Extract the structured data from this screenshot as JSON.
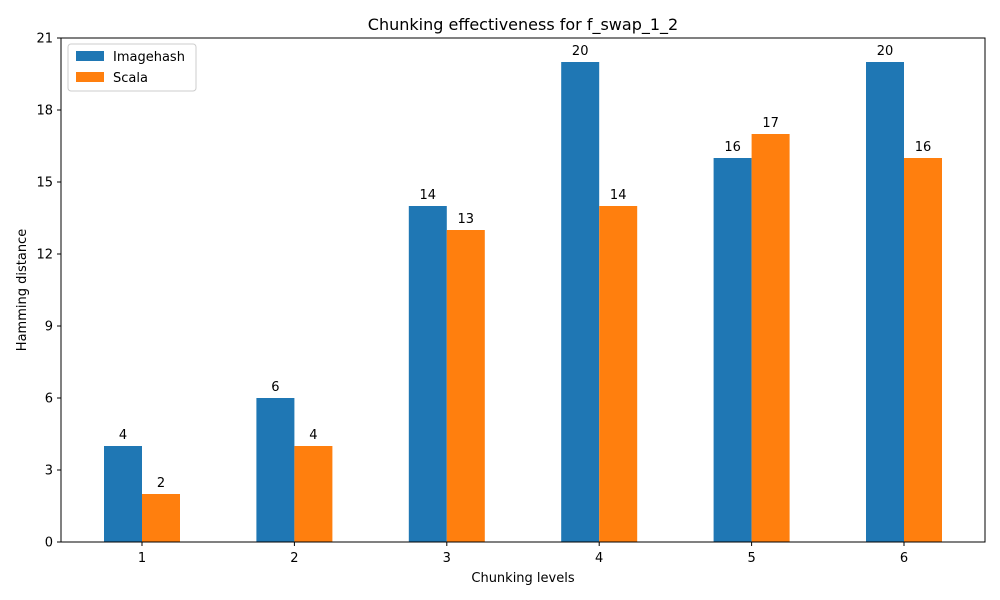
{
  "chart_data": {
    "type": "bar",
    "title": "Chunking effectiveness for  f_swap_1_2",
    "xlabel": "Chunking levels",
    "ylabel": "Hamming distance",
    "categories": [
      "1",
      "2",
      "3",
      "4",
      "5",
      "6"
    ],
    "ylim": [
      0,
      21
    ],
    "yticks": [
      0,
      3,
      6,
      9,
      12,
      15,
      18,
      21
    ],
    "legend_position": "top-left",
    "grid": false,
    "series": [
      {
        "name": "Imagehash",
        "color": "#1f77b4",
        "values": [
          4,
          6,
          14,
          20,
          16,
          20
        ]
      },
      {
        "name": "Scala",
        "color": "#ff7f0e",
        "values": [
          2,
          4,
          13,
          14,
          17,
          16
        ]
      }
    ]
  }
}
